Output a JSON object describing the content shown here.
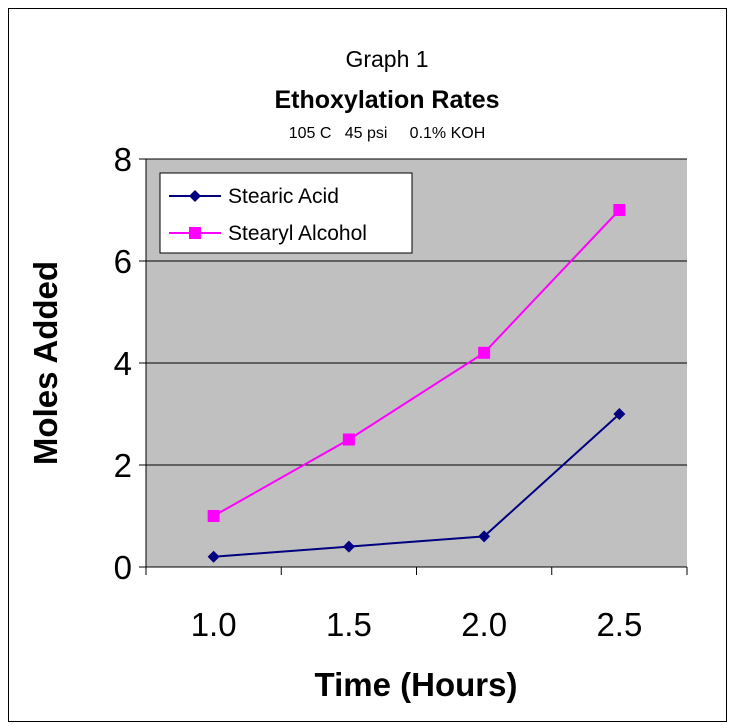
{
  "chart_data": {
    "type": "line",
    "title": "Graph 1",
    "subtitle": "Ethoxylation Rates",
    "conditions": "105 C   45 psi     0.1% KOH",
    "xlabel": "Time (Hours)",
    "ylabel": "Moles Added",
    "categories": [
      "1.0",
      "1.5",
      "2.0",
      "2.5"
    ],
    "ylim": [
      0,
      8
    ],
    "yticks": [
      0,
      2,
      4,
      6,
      8
    ],
    "grid": true,
    "legend_position": "top-left",
    "plot_background": "#c0c0c0",
    "series": [
      {
        "name": "Stearic Acid",
        "values": [
          0.2,
          0.4,
          0.6,
          3.0
        ],
        "color": "#000080",
        "marker": "diamond"
      },
      {
        "name": "Stearyl Alcohol",
        "values": [
          1.0,
          2.5,
          4.2,
          7.0
        ],
        "color": "#ff00ff",
        "marker": "square"
      }
    ]
  }
}
